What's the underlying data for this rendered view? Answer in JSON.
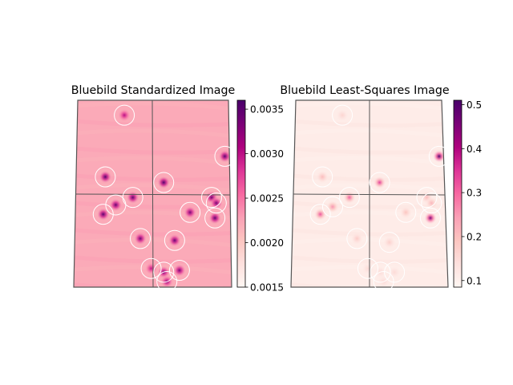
{
  "chart_data": [
    {
      "type": "heatmap",
      "title": "Bluebild Standardized Image",
      "colormap": "RdPu",
      "colorbar": {
        "min": 0.0015,
        "max": 0.0036,
        "ticks": [
          "0.0015",
          "0.0020",
          "0.0025",
          "0.0030",
          "0.0035"
        ]
      },
      "background_level": 0.34,
      "sources": [
        {
          "u": 0.31,
          "v": 0.08,
          "level": 0.72
        },
        {
          "u": 0.97,
          "v": 0.3,
          "level": 0.95
        },
        {
          "u": 0.19,
          "v": 0.41,
          "level": 0.97
        },
        {
          "u": 0.57,
          "v": 0.44,
          "level": 0.98
        },
        {
          "u": 0.37,
          "v": 0.52,
          "level": 0.94
        },
        {
          "u": 0.88,
          "v": 0.52,
          "level": 0.9
        },
        {
          "u": 0.91,
          "v": 0.55,
          "level": 0.88
        },
        {
          "u": 0.26,
          "v": 0.56,
          "level": 0.92
        },
        {
          "u": 0.18,
          "v": 0.61,
          "level": 0.96
        },
        {
          "u": 0.74,
          "v": 0.6,
          "level": 0.88
        },
        {
          "u": 0.9,
          "v": 0.63,
          "level": 0.94
        },
        {
          "u": 0.42,
          "v": 0.74,
          "level": 0.9
        },
        {
          "u": 0.64,
          "v": 0.75,
          "level": 0.92
        },
        {
          "u": 0.49,
          "v": 0.9,
          "level": 0.7
        },
        {
          "u": 0.57,
          "v": 0.92,
          "level": 0.86
        },
        {
          "u": 0.67,
          "v": 0.91,
          "level": 0.88
        },
        {
          "u": 0.59,
          "v": 0.97,
          "level": 0.82
        }
      ]
    },
    {
      "type": "heatmap",
      "title": "Bluebild Least-Squares Image",
      "colormap": "RdPu",
      "colorbar": {
        "min": 0.085,
        "max": 0.51,
        "ticks": [
          "0.1",
          "0.2",
          "0.3",
          "0.4",
          "0.5"
        ]
      },
      "background_level": 0.06,
      "sources": [
        {
          "u": 0.32,
          "v": 0.08,
          "level": 0.18
        },
        {
          "u": 0.97,
          "v": 0.3,
          "level": 0.98
        },
        {
          "u": 0.19,
          "v": 0.41,
          "level": 0.28
        },
        {
          "u": 0.57,
          "v": 0.44,
          "level": 0.6
        },
        {
          "u": 0.37,
          "v": 0.52,
          "level": 0.52
        },
        {
          "u": 0.88,
          "v": 0.52,
          "level": 0.28
        },
        {
          "u": 0.91,
          "v": 0.55,
          "level": 0.3
        },
        {
          "u": 0.26,
          "v": 0.57,
          "level": 0.4
        },
        {
          "u": 0.18,
          "v": 0.61,
          "level": 0.55
        },
        {
          "u": 0.74,
          "v": 0.6,
          "level": 0.25
        },
        {
          "u": 0.9,
          "v": 0.63,
          "level": 0.85
        },
        {
          "u": 0.42,
          "v": 0.74,
          "level": 0.22
        },
        {
          "u": 0.63,
          "v": 0.76,
          "level": 0.2
        },
        {
          "u": 0.49,
          "v": 0.9,
          "level": 0.15
        },
        {
          "u": 0.57,
          "v": 0.92,
          "level": 0.15
        },
        {
          "u": 0.66,
          "v": 0.92,
          "level": 0.15
        },
        {
          "u": 0.59,
          "v": 0.97,
          "level": 0.15
        }
      ]
    }
  ]
}
